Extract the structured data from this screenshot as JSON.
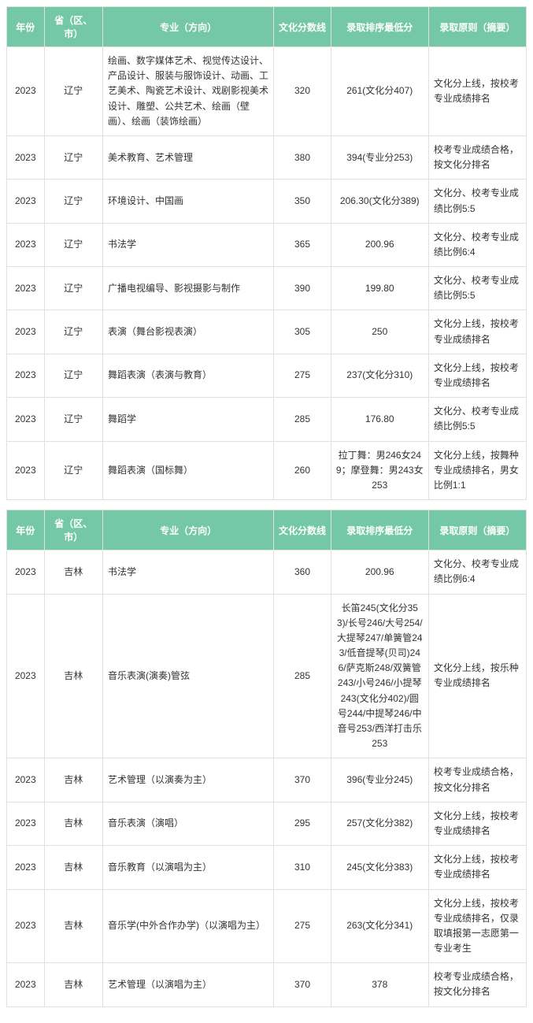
{
  "header_bg": "#74c8a7",
  "header_fg": "#ffffff",
  "border_color": "#e0e0e0",
  "font_family": "Microsoft YaHei",
  "body_font_size": 12,
  "tables": [
    {
      "columns": [
        "年份",
        "省（区、市）",
        "专业（方向）",
        "文化分数线",
        "录取排序最低分",
        "录取原则（摘要）"
      ],
      "rows": [
        [
          "2023",
          "辽宁",
          "绘画、数字媒体艺术、视觉传达设计、产品设计、服装与服饰设计、动画、工艺美术、陶瓷艺术设计、戏剧影视美术设计、雕塑、公共艺术、绘画（壁画）、绘画（装饰绘画）",
          "320",
          "261(文化分407)",
          "文化分上线，按校考专业成绩排名"
        ],
        [
          "2023",
          "辽宁",
          "美术教育、艺术管理",
          "380",
          "394(专业分253)",
          "校考专业成绩合格，按文化分排名"
        ],
        [
          "2023",
          "辽宁",
          "环境设计、中国画",
          "350",
          "206.30(文化分389)",
          "文化分、校考专业成绩比例5:5"
        ],
        [
          "2023",
          "辽宁",
          "书法学",
          "365",
          "200.96",
          "文化分、校考专业成绩比例6:4"
        ],
        [
          "2023",
          "辽宁",
          "广播电视编导、影视摄影与制作",
          "390",
          "199.80",
          "文化分、校考专业成绩比例5:5"
        ],
        [
          "2023",
          "辽宁",
          "表演（舞台影视表演）",
          "305",
          "250",
          "文化分上线，按校考专业成绩排名"
        ],
        [
          "2023",
          "辽宁",
          "舞蹈表演（表演与教育）",
          "275",
          "237(文化分310)",
          "文化分上线，按校考专业成绩排名"
        ],
        [
          "2023",
          "辽宁",
          "舞蹈学",
          "285",
          "176.80",
          "文化分、校考专业成绩比例5:5"
        ],
        [
          "2023",
          "辽宁",
          "舞蹈表演（国标舞）",
          "260",
          "拉丁舞：男246女249；摩登舞：男243女253",
          "文化分上线，按舞种专业成绩排名，男女比例1:1"
        ]
      ]
    },
    {
      "columns": [
        "年份",
        "省（区、市）",
        "专业（方向）",
        "文化分数线",
        "录取排序最低分",
        "录取原则（摘要）"
      ],
      "rows": [
        [
          "2023",
          "吉林",
          "书法学",
          "360",
          "200.96",
          "文化分、校考专业成绩比例6:4"
        ],
        [
          "2023",
          "吉林",
          "音乐表演(演奏)管弦",
          "285",
          "长笛245(文化分353)/长号246/大号254/大提琴247/单簧管243/低音提琴(贝司)246/萨克斯248/双簧管243/小号246/小提琴243(文化分402)/圆号244/中提琴246/中音号253/西洋打击乐253",
          "文化分上线，按乐种专业成绩排名"
        ],
        [
          "2023",
          "吉林",
          "艺术管理（以演奏为主）",
          "370",
          "396(专业分245)",
          "校考专业成绩合格，按文化分排名"
        ],
        [
          "2023",
          "吉林",
          "音乐表演（演唱）",
          "295",
          "257(文化分382)",
          "文化分上线，按校考专业成绩排名"
        ],
        [
          "2023",
          "吉林",
          "音乐教育（以演唱为主）",
          "310",
          "245(文化分383)",
          "文化分上线，按校考专业成绩排名"
        ],
        [
          "2023",
          "吉林",
          "音乐学(中外合作办学)（以演唱为主）",
          "275",
          "263(文化分341)",
          "文化分上线，按校考专业成绩排名，仅录取填报第一志愿第一专业考生"
        ],
        [
          "2023",
          "吉林",
          "艺术管理（以演唱为主）",
          "370",
          "378",
          "校考专业成绩合格，按文化分排名"
        ]
      ]
    }
  ],
  "col_classes": [
    "col-year",
    "col-prov",
    "col-major",
    "col-score",
    "col-rank",
    "col-rule"
  ],
  "left_cols": [
    2,
    5
  ]
}
